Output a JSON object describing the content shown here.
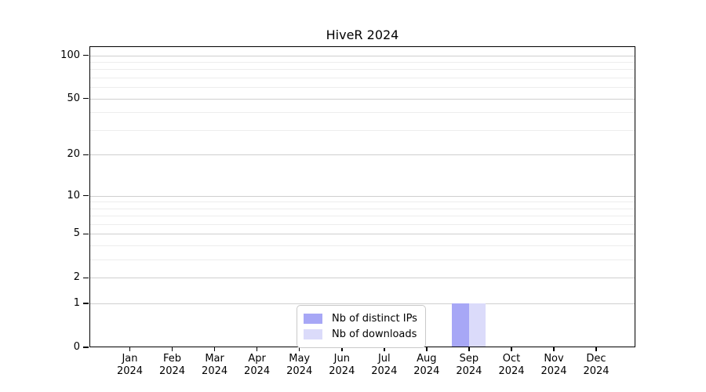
{
  "chart_data": {
    "type": "bar",
    "title": "HiveR 2024",
    "categories": [
      "Jan",
      "Feb",
      "Mar",
      "Apr",
      "May",
      "Jun",
      "Jul",
      "Aug",
      "Sep",
      "Oct",
      "Nov",
      "Dec"
    ],
    "year_label": "2024",
    "series": [
      {
        "name": "Nb of distinct IPs",
        "color": "#a7a7f6",
        "values": [
          0,
          0,
          0,
          0,
          0,
          0,
          0,
          0,
          1,
          0,
          0,
          0
        ]
      },
      {
        "name": "Nb of downloads",
        "color": "#dbdbfa",
        "values": [
          0,
          0,
          0,
          0,
          0,
          0,
          0,
          0,
          1,
          0,
          0,
          0
        ]
      }
    ],
    "y_axis": {
      "scale": "log1p",
      "ticks": [
        0,
        1,
        2,
        5,
        10,
        20,
        50,
        100
      ],
      "minor_gridlines": [
        3,
        4,
        6,
        7,
        8,
        9,
        30,
        40,
        60,
        70,
        80,
        90
      ],
      "max": 100
    },
    "xlabel": "",
    "ylabel": "",
    "grid": true,
    "legend_position": "bottom-center-inside"
  }
}
